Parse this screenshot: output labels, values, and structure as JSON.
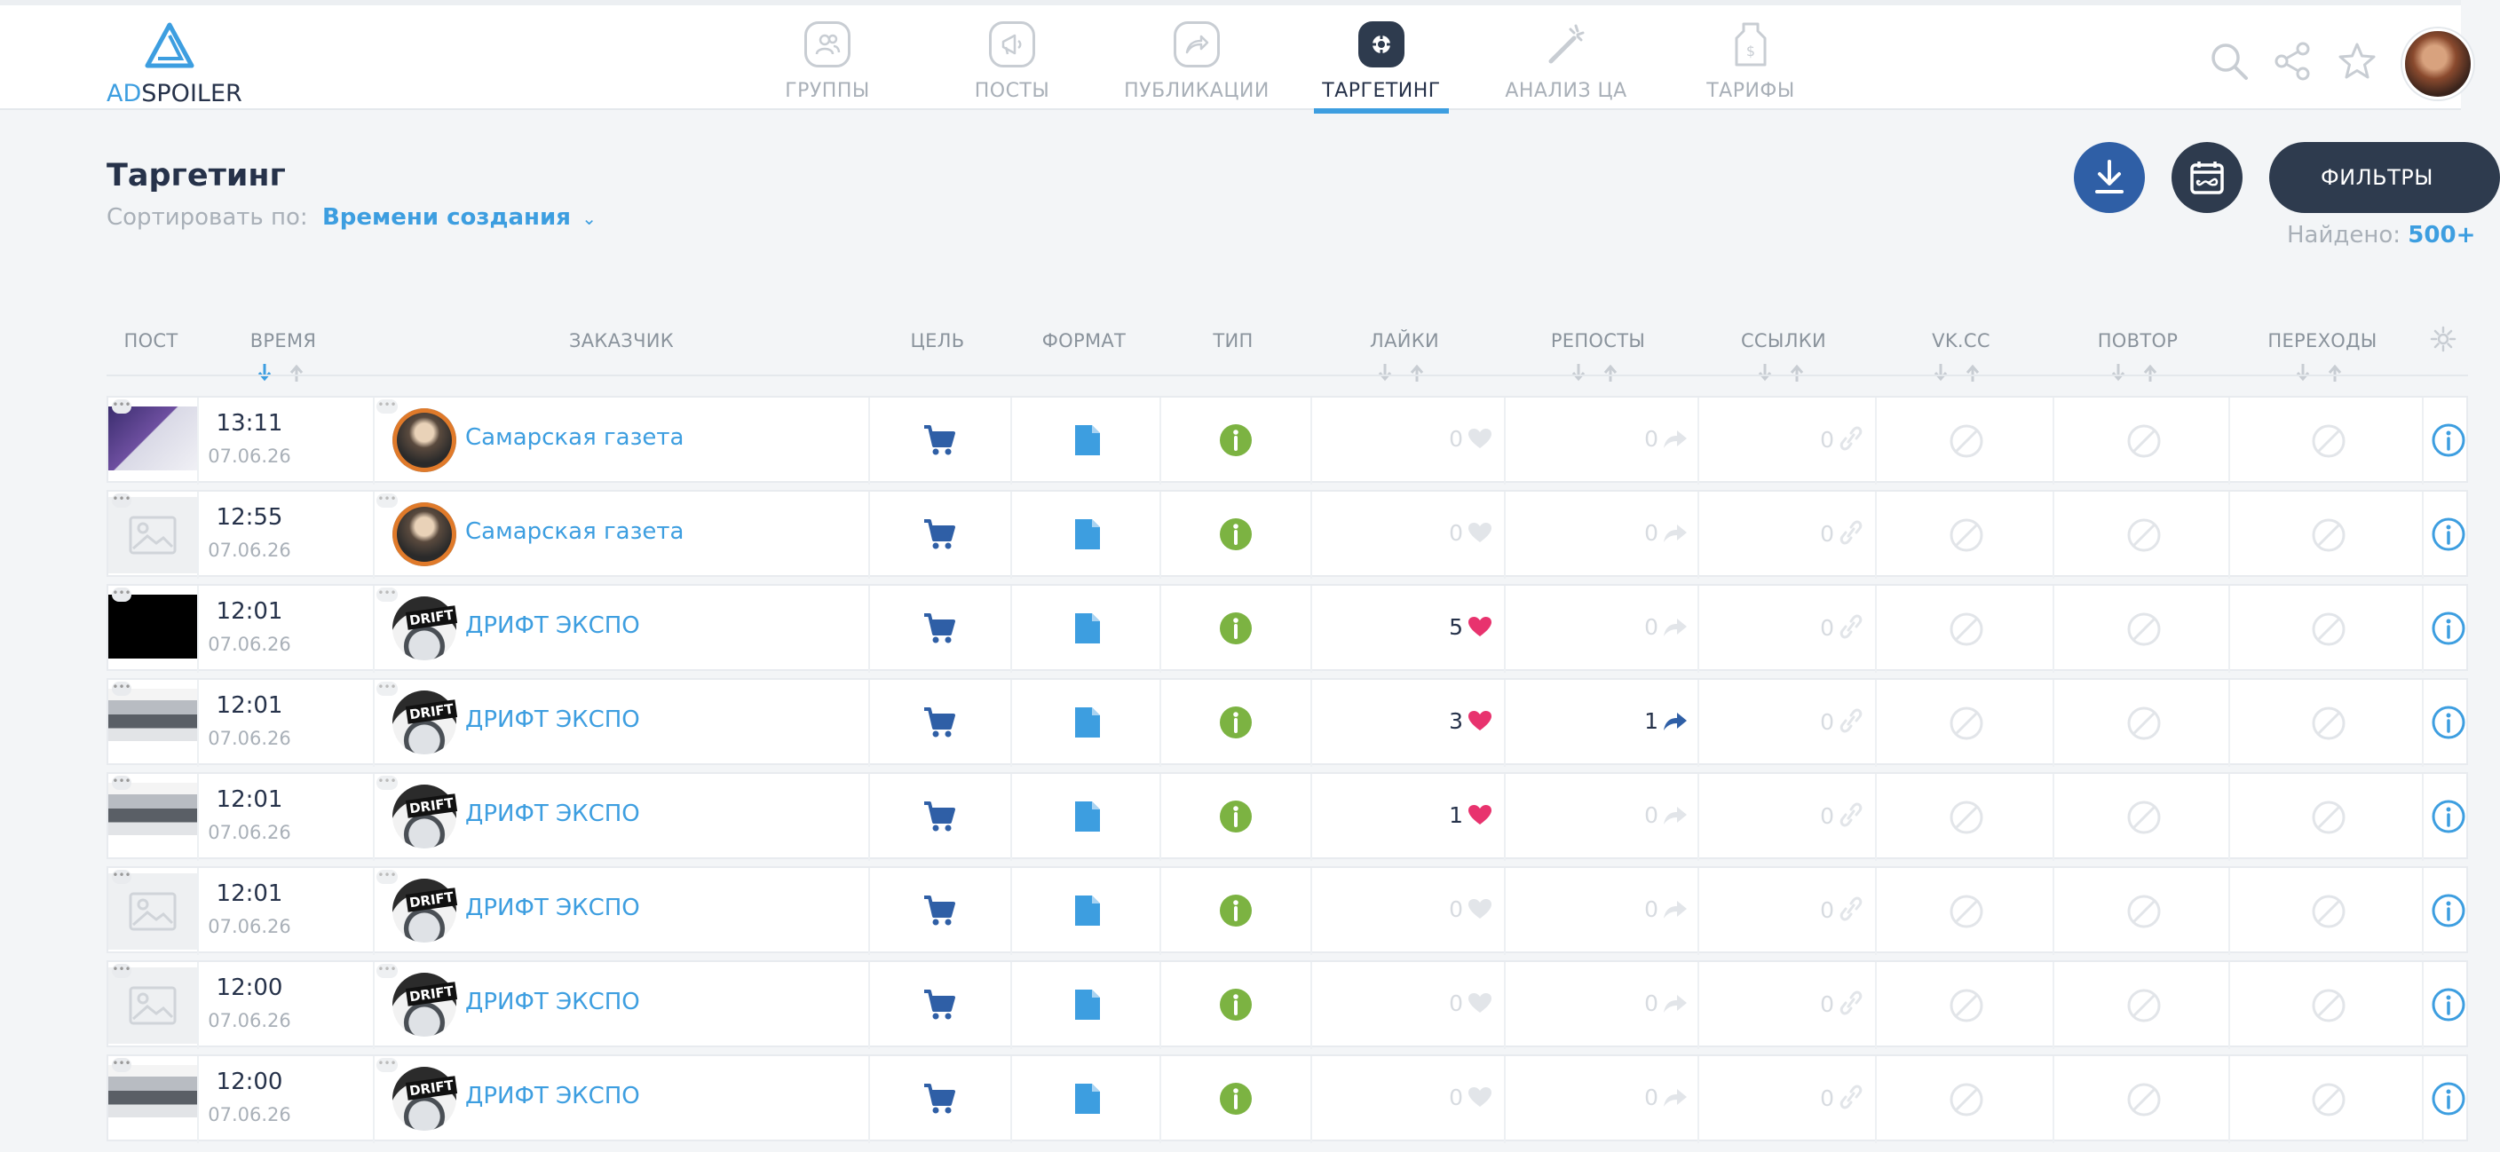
{
  "header": {
    "logo_ad": "AD",
    "logo_spoiler": "SPOILER",
    "nav": [
      {
        "label": "ГРУППЫ",
        "icon": "groups-icon"
      },
      {
        "label": "ПОСТЫ",
        "icon": "megaphone-icon"
      },
      {
        "label": "ПУБЛИКАЦИИ",
        "icon": "share-arrow-icon"
      },
      {
        "label": "ТАРГЕТИНГ",
        "icon": "target-icon",
        "active": true
      },
      {
        "label": "АНАЛИЗ ЦА",
        "icon": "magic-wand-icon"
      },
      {
        "label": "ТАРИФЫ",
        "icon": "price-tag-icon"
      }
    ]
  },
  "page": {
    "title": "Таргетинг",
    "sort_label": "Сортировать по:",
    "sort_value": "Времени создания",
    "filters_label": "ФИЛЬТРЫ",
    "found_label": "Найдено:",
    "found_value": "500+"
  },
  "columns": {
    "post": "ПОСТ",
    "time": "ВРЕМЯ",
    "customer": "ЗАКАЗЧИК",
    "goal": "ЦЕЛЬ",
    "format": "ФОРМАТ",
    "type": "ТИП",
    "likes": "ЛАЙКИ",
    "reposts": "РЕПОСТЫ",
    "links": "ССЫЛКИ",
    "vkcc": "VK.CC",
    "repeat": "ПОВТОР",
    "clicks": "ПЕРЕХОДЫ"
  },
  "rows": [
    {
      "time": "13:11",
      "date": "07.06.26",
      "customer": "Самарская газета",
      "likes": "0",
      "reposts": "0",
      "links": "0",
      "thumb": "image"
    },
    {
      "time": "12:55",
      "date": "07.06.26",
      "customer": "Самарская газета",
      "likes": "0",
      "reposts": "0",
      "links": "0",
      "thumb": "placeholder"
    },
    {
      "time": "12:01",
      "date": "07.06.26",
      "customer": "ДРИФТ ЭКСПО",
      "likes": "5",
      "reposts": "0",
      "links": "0",
      "thumb": "black"
    },
    {
      "time": "12:01",
      "date": "07.06.26",
      "customer": "ДРИФТ ЭКСПО",
      "likes": "3",
      "reposts": "1",
      "links": "0",
      "thumb": "cars"
    },
    {
      "time": "12:01",
      "date": "07.06.26",
      "customer": "ДРИФТ ЭКСПО",
      "likes": "1",
      "reposts": "0",
      "links": "0",
      "thumb": "cars"
    },
    {
      "time": "12:01",
      "date": "07.06.26",
      "customer": "ДРИФТ ЭКСПО",
      "likes": "0",
      "reposts": "0",
      "links": "0",
      "thumb": "placeholder"
    },
    {
      "time": "12:00",
      "date": "07.06.26",
      "customer": "ДРИФТ ЭКСПО",
      "likes": "0",
      "reposts": "0",
      "links": "0",
      "thumb": "placeholder"
    },
    {
      "time": "12:00",
      "date": "07.06.26",
      "customer": "ДРИФТ ЭКСПО",
      "likes": "0",
      "reposts": "0",
      "links": "0",
      "thumb": "cars"
    }
  ],
  "colors": {
    "accent": "#3d9ee0",
    "dark": "#2e3b4e",
    "like": "#e8336e",
    "goal": "#2f5fa6",
    "type": "#7cb342"
  }
}
